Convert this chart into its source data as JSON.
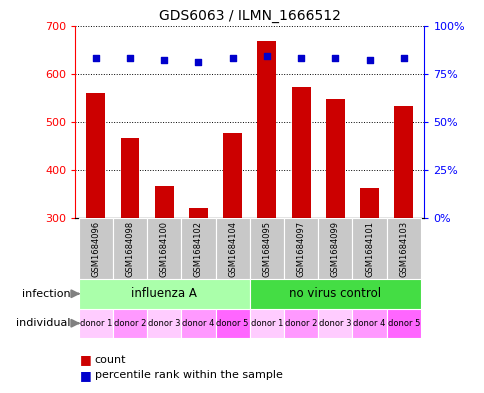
{
  "title": "GDS6063 / ILMN_1666512",
  "samples": [
    "GSM1684096",
    "GSM1684098",
    "GSM1684100",
    "GSM1684102",
    "GSM1684104",
    "GSM1684095",
    "GSM1684097",
    "GSM1684099",
    "GSM1684101",
    "GSM1684103"
  ],
  "counts": [
    559,
    467,
    367,
    320,
    477,
    667,
    572,
    548,
    362,
    532
  ],
  "percentiles": [
    83,
    83,
    82,
    81,
    83,
    84,
    83,
    83,
    82,
    83
  ],
  "infection_groups": [
    {
      "label": "influenza A",
      "start": 0,
      "end": 5,
      "color": "#AAFFAA"
    },
    {
      "label": "no virus control",
      "start": 5,
      "end": 10,
      "color": "#44DD44"
    }
  ],
  "donors": [
    "donor 1",
    "donor 2",
    "donor 3",
    "donor 4",
    "donor 5",
    "donor 1",
    "donor 2",
    "donor 3",
    "donor 4",
    "donor 5"
  ],
  "donor_colors": [
    "#FFCCFF",
    "#FF99FF",
    "#FFCCFF",
    "#FF99FF",
    "#FF66FF",
    "#FFCCFF",
    "#FF99FF",
    "#FFCCFF",
    "#FF99FF",
    "#FF66FF"
  ],
  "ylim_left": [
    300,
    700
  ],
  "ylim_right": [
    0,
    100
  ],
  "yticks_left": [
    300,
    400,
    500,
    600,
    700
  ],
  "yticks_right": [
    0,
    25,
    50,
    75,
    100
  ],
  "yticklabels_right": [
    "0%",
    "25%",
    "50%",
    "75%",
    "100%"
  ],
  "bar_color": "#CC0000",
  "dot_color": "#0000CC",
  "bar_width": 0.55,
  "sample_bg_color": "#C8C8C8",
  "grid_color": "#000000",
  "legend_items": [
    {
      "label": "count",
      "color": "#CC0000"
    },
    {
      "label": "percentile rank within the sample",
      "color": "#0000CC"
    }
  ]
}
